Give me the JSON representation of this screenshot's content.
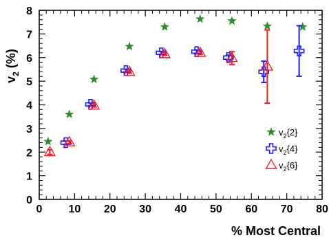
{
  "chart_data": {
    "type": "scatter",
    "title": "",
    "xlabel": "% Most Central",
    "ylabel_main": "v",
    "ylabel_sub": "2",
    "ylabel_unit": " (%)",
    "xlim": [
      0,
      80
    ],
    "ylim": [
      0,
      8
    ],
    "xticks": [
      "0",
      "10",
      "20",
      "30",
      "40",
      "50",
      "60",
      "70",
      "80"
    ],
    "yticks": [
      "0",
      "1",
      "2",
      "3",
      "4",
      "5",
      "6",
      "7",
      "8"
    ],
    "grid": false,
    "legend_position": "bottom-right",
    "series": [
      {
        "name_main": "v",
        "name_sub": "2",
        "name_suffix": "{2}",
        "marker": "star",
        "color": "#2e8b2e",
        "points": [
          {
            "x": 2.5,
            "y": 2.45
          },
          {
            "x": 8.5,
            "y": 3.6
          },
          {
            "x": 15.5,
            "y": 5.08
          },
          {
            "x": 25.5,
            "y": 6.47
          },
          {
            "x": 35.5,
            "y": 7.3
          },
          {
            "x": 45.5,
            "y": 7.63
          },
          {
            "x": 54.5,
            "y": 7.55
          },
          {
            "x": 64.5,
            "y": 7.33
          },
          {
            "x": 74.5,
            "y": 7.3
          }
        ]
      },
      {
        "name_main": "v",
        "name_sub": "2",
        "name_suffix": "{4}",
        "marker": "cross",
        "color": "#1a1aff",
        "points": [
          {
            "x": 7.5,
            "y": 2.4,
            "err": 0.07
          },
          {
            "x": 14.5,
            "y": 4.02,
            "err": 0.06
          },
          {
            "x": 24.5,
            "y": 5.45,
            "err": 0.06
          },
          {
            "x": 34.5,
            "y": 6.2,
            "err": 0.06
          },
          {
            "x": 44.5,
            "y": 6.25,
            "err": 0.07
          },
          {
            "x": 53.5,
            "y": 6.0,
            "err": 0.1
          },
          {
            "x": 63.5,
            "y": 5.4,
            "err": 0.45
          },
          {
            "x": 73.5,
            "y": 6.28,
            "err": 1.07
          }
        ]
      },
      {
        "name_main": "v",
        "name_sub": "2",
        "name_suffix": "{6}",
        "marker": "triangle",
        "color": "#ff1a1a",
        "points": [
          {
            "x": 3.0,
            "y": 2.0,
            "err": 0.1
          },
          {
            "x": 8.5,
            "y": 2.42,
            "err": 0.06
          },
          {
            "x": 15.5,
            "y": 3.97,
            "err": 0.06
          },
          {
            "x": 25.5,
            "y": 5.4,
            "err": 0.06
          },
          {
            "x": 35.5,
            "y": 6.15,
            "err": 0.06
          },
          {
            "x": 45.5,
            "y": 6.2,
            "err": 0.07
          },
          {
            "x": 54.5,
            "y": 5.98,
            "err": 0.27
          },
          {
            "x": 64.5,
            "y": 5.62,
            "err": 1.55
          }
        ]
      }
    ]
  }
}
